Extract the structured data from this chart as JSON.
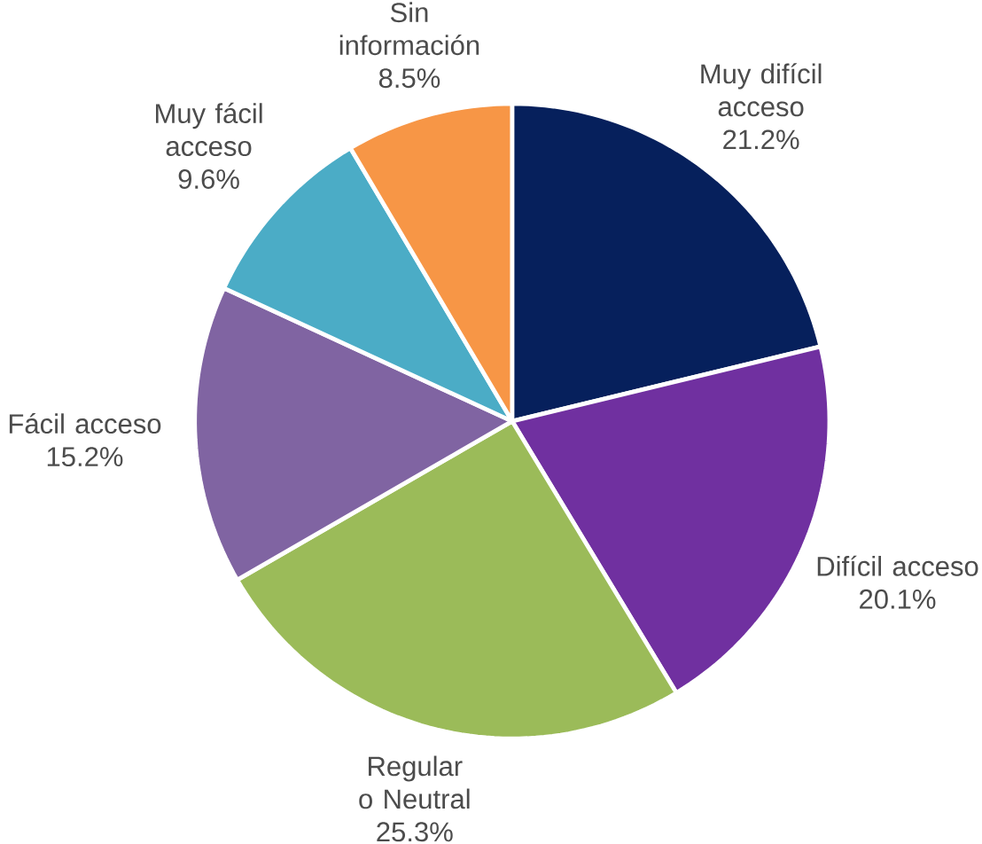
{
  "chart_data": {
    "type": "pie",
    "categories": [
      "Muy difícil acceso",
      "Difícil acceso",
      "Regular o Neutral",
      "Fácil acceso",
      "Muy fácil acceso",
      "Sin información"
    ],
    "values": [
      21.2,
      20.1,
      25.3,
      15.2,
      9.6,
      8.5
    ],
    "colors": [
      "#06205c",
      "#7030a0",
      "#9bbb59",
      "#8064a2",
      "#4bacc6",
      "#f79646"
    ],
    "value_labels": [
      "21.2%",
      "20.1%",
      "25.3%",
      "15.2%",
      "9.6%",
      "8.5%"
    ]
  }
}
